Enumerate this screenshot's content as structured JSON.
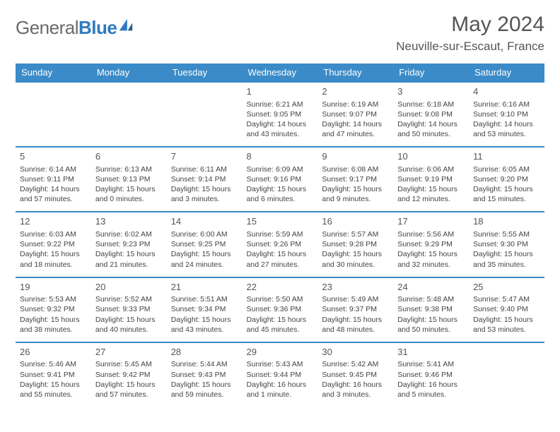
{
  "brand": {
    "part1": "General",
    "part2": "Blue"
  },
  "title": "May 2024",
  "location": "Neuville-sur-Escaut, France",
  "colors": {
    "header_bg": "#3b8bc8",
    "header_fg": "#ffffff",
    "border": "#3b8bc8",
    "text": "#444444",
    "title_text": "#555555",
    "brand_gray": "#6a6a6a",
    "brand_blue": "#2f7ac0",
    "background": "#ffffff"
  },
  "typography": {
    "title_fontsize": 30,
    "location_fontsize": 17,
    "header_fontsize": 13,
    "cell_fontsize": 10.5,
    "daynum_fontsize": 13
  },
  "weekdays": [
    "Sunday",
    "Monday",
    "Tuesday",
    "Wednesday",
    "Thursday",
    "Friday",
    "Saturday"
  ],
  "weeks": [
    [
      null,
      null,
      null,
      {
        "day": "1",
        "sunrise": "Sunrise: 6:21 AM",
        "sunset": "Sunset: 9:05 PM",
        "daylight": "Daylight: 14 hours and 43 minutes."
      },
      {
        "day": "2",
        "sunrise": "Sunrise: 6:19 AM",
        "sunset": "Sunset: 9:07 PM",
        "daylight": "Daylight: 14 hours and 47 minutes."
      },
      {
        "day": "3",
        "sunrise": "Sunrise: 6:18 AM",
        "sunset": "Sunset: 9:08 PM",
        "daylight": "Daylight: 14 hours and 50 minutes."
      },
      {
        "day": "4",
        "sunrise": "Sunrise: 6:16 AM",
        "sunset": "Sunset: 9:10 PM",
        "daylight": "Daylight: 14 hours and 53 minutes."
      }
    ],
    [
      {
        "day": "5",
        "sunrise": "Sunrise: 6:14 AM",
        "sunset": "Sunset: 9:11 PM",
        "daylight": "Daylight: 14 hours and 57 minutes."
      },
      {
        "day": "6",
        "sunrise": "Sunrise: 6:13 AM",
        "sunset": "Sunset: 9:13 PM",
        "daylight": "Daylight: 15 hours and 0 minutes."
      },
      {
        "day": "7",
        "sunrise": "Sunrise: 6:11 AM",
        "sunset": "Sunset: 9:14 PM",
        "daylight": "Daylight: 15 hours and 3 minutes."
      },
      {
        "day": "8",
        "sunrise": "Sunrise: 6:09 AM",
        "sunset": "Sunset: 9:16 PM",
        "daylight": "Daylight: 15 hours and 6 minutes."
      },
      {
        "day": "9",
        "sunrise": "Sunrise: 6:08 AM",
        "sunset": "Sunset: 9:17 PM",
        "daylight": "Daylight: 15 hours and 9 minutes."
      },
      {
        "day": "10",
        "sunrise": "Sunrise: 6:06 AM",
        "sunset": "Sunset: 9:19 PM",
        "daylight": "Daylight: 15 hours and 12 minutes."
      },
      {
        "day": "11",
        "sunrise": "Sunrise: 6:05 AM",
        "sunset": "Sunset: 9:20 PM",
        "daylight": "Daylight: 15 hours and 15 minutes."
      }
    ],
    [
      {
        "day": "12",
        "sunrise": "Sunrise: 6:03 AM",
        "sunset": "Sunset: 9:22 PM",
        "daylight": "Daylight: 15 hours and 18 minutes."
      },
      {
        "day": "13",
        "sunrise": "Sunrise: 6:02 AM",
        "sunset": "Sunset: 9:23 PM",
        "daylight": "Daylight: 15 hours and 21 minutes."
      },
      {
        "day": "14",
        "sunrise": "Sunrise: 6:00 AM",
        "sunset": "Sunset: 9:25 PM",
        "daylight": "Daylight: 15 hours and 24 minutes."
      },
      {
        "day": "15",
        "sunrise": "Sunrise: 5:59 AM",
        "sunset": "Sunset: 9:26 PM",
        "daylight": "Daylight: 15 hours and 27 minutes."
      },
      {
        "day": "16",
        "sunrise": "Sunrise: 5:57 AM",
        "sunset": "Sunset: 9:28 PM",
        "daylight": "Daylight: 15 hours and 30 minutes."
      },
      {
        "day": "17",
        "sunrise": "Sunrise: 5:56 AM",
        "sunset": "Sunset: 9:29 PM",
        "daylight": "Daylight: 15 hours and 32 minutes."
      },
      {
        "day": "18",
        "sunrise": "Sunrise: 5:55 AM",
        "sunset": "Sunset: 9:30 PM",
        "daylight": "Daylight: 15 hours and 35 minutes."
      }
    ],
    [
      {
        "day": "19",
        "sunrise": "Sunrise: 5:53 AM",
        "sunset": "Sunset: 9:32 PM",
        "daylight": "Daylight: 15 hours and 38 minutes."
      },
      {
        "day": "20",
        "sunrise": "Sunrise: 5:52 AM",
        "sunset": "Sunset: 9:33 PM",
        "daylight": "Daylight: 15 hours and 40 minutes."
      },
      {
        "day": "21",
        "sunrise": "Sunrise: 5:51 AM",
        "sunset": "Sunset: 9:34 PM",
        "daylight": "Daylight: 15 hours and 43 minutes."
      },
      {
        "day": "22",
        "sunrise": "Sunrise: 5:50 AM",
        "sunset": "Sunset: 9:36 PM",
        "daylight": "Daylight: 15 hours and 45 minutes."
      },
      {
        "day": "23",
        "sunrise": "Sunrise: 5:49 AM",
        "sunset": "Sunset: 9:37 PM",
        "daylight": "Daylight: 15 hours and 48 minutes."
      },
      {
        "day": "24",
        "sunrise": "Sunrise: 5:48 AM",
        "sunset": "Sunset: 9:38 PM",
        "daylight": "Daylight: 15 hours and 50 minutes."
      },
      {
        "day": "25",
        "sunrise": "Sunrise: 5:47 AM",
        "sunset": "Sunset: 9:40 PM",
        "daylight": "Daylight: 15 hours and 53 minutes."
      }
    ],
    [
      {
        "day": "26",
        "sunrise": "Sunrise: 5:46 AM",
        "sunset": "Sunset: 9:41 PM",
        "daylight": "Daylight: 15 hours and 55 minutes."
      },
      {
        "day": "27",
        "sunrise": "Sunrise: 5:45 AM",
        "sunset": "Sunset: 9:42 PM",
        "daylight": "Daylight: 15 hours and 57 minutes."
      },
      {
        "day": "28",
        "sunrise": "Sunrise: 5:44 AM",
        "sunset": "Sunset: 9:43 PM",
        "daylight": "Daylight: 15 hours and 59 minutes."
      },
      {
        "day": "29",
        "sunrise": "Sunrise: 5:43 AM",
        "sunset": "Sunset: 9:44 PM",
        "daylight": "Daylight: 16 hours and 1 minute."
      },
      {
        "day": "30",
        "sunrise": "Sunrise: 5:42 AM",
        "sunset": "Sunset: 9:45 PM",
        "daylight": "Daylight: 16 hours and 3 minutes."
      },
      {
        "day": "31",
        "sunrise": "Sunrise: 5:41 AM",
        "sunset": "Sunset: 9:46 PM",
        "daylight": "Daylight: 16 hours and 5 minutes."
      },
      null
    ]
  ]
}
